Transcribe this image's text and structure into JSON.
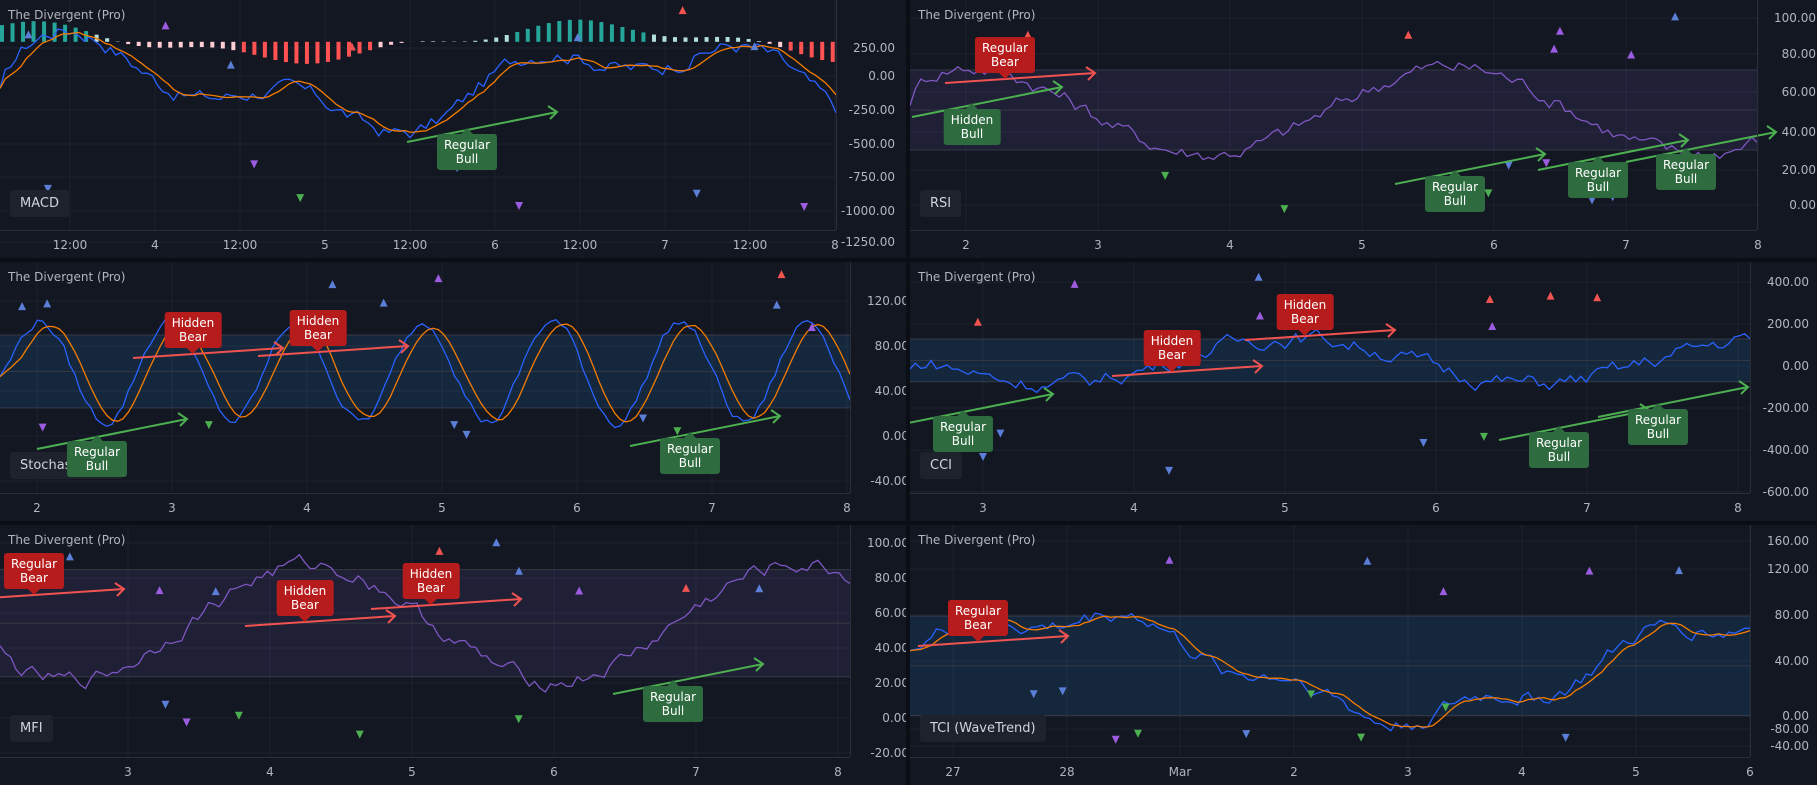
{
  "panels": [
    {
      "title": "The Divergent (Pro)",
      "name": "MACD",
      "y_ticks": [
        "250.00",
        "0.00",
        "-250.00",
        "-500.00",
        "-750.00",
        "-1000.00",
        "-1250.00"
      ],
      "x_ticks": [
        "12:00",
        "4",
        "12:00",
        "5",
        "12:00",
        "6",
        "12:00",
        "7",
        "12:00",
        "8"
      ],
      "labels": [
        {
          "kind": "bull",
          "text": "Regular\nBull"
        }
      ]
    },
    {
      "title": "The Divergent (Pro)",
      "name": "RSI",
      "y_ticks": [
        "100.00",
        "80.00",
        "60.00",
        "40.00",
        "20.00",
        "0.00"
      ],
      "x_ticks": [
        "2",
        "3",
        "4",
        "5",
        "6",
        "7",
        "8"
      ],
      "labels": [
        {
          "kind": "bear",
          "text": "Regular\nBear"
        },
        {
          "kind": "bull",
          "text": "Hidden\nBull"
        },
        {
          "kind": "bull",
          "text": "Regular\nBull"
        },
        {
          "kind": "bull",
          "text": "Regular\nBull"
        },
        {
          "kind": "bull",
          "text": "Regular\nBull"
        }
      ]
    },
    {
      "title": "The Divergent (Pro)",
      "name": "Stochastic RSI",
      "y_ticks": [
        "120.00",
        "80.00",
        "40.00",
        "0.00",
        "-40.00"
      ],
      "x_ticks": [
        "2",
        "3",
        "4",
        "5",
        "6",
        "7",
        "8"
      ],
      "labels": [
        {
          "kind": "bear",
          "text": "Hidden\nBear"
        },
        {
          "kind": "bear",
          "text": "Hidden\nBear"
        },
        {
          "kind": "bull",
          "text": "Regular\nBull"
        },
        {
          "kind": "bull",
          "text": "Regular\nBull"
        }
      ]
    },
    {
      "title": "The Divergent (Pro)",
      "name": "CCI",
      "y_ticks": [
        "400.00",
        "200.00",
        "0.00",
        "-200.00",
        "-400.00",
        "-600.00"
      ],
      "x_ticks": [
        "3",
        "4",
        "5",
        "6",
        "7",
        "8"
      ],
      "labels": [
        {
          "kind": "bear",
          "text": "Hidden\nBear"
        },
        {
          "kind": "bear",
          "text": "Hidden\nBear"
        },
        {
          "kind": "bull",
          "text": "Regular\nBull"
        },
        {
          "kind": "bull",
          "text": "Regular\nBull"
        },
        {
          "kind": "bull",
          "text": "Regular\nBull"
        }
      ]
    },
    {
      "title": "The Divergent (Pro)",
      "name": "MFI",
      "y_ticks": [
        "100.00",
        "80.00",
        "60.00",
        "40.00",
        "20.00",
        "0.00",
        "-20.00"
      ],
      "x_ticks": [
        "3",
        "4",
        "5",
        "6",
        "7",
        "8"
      ],
      "labels": [
        {
          "kind": "bear",
          "text": "Regular\nBear"
        },
        {
          "kind": "bear",
          "text": "Hidden\nBear"
        },
        {
          "kind": "bear",
          "text": "Hidden\nBear"
        },
        {
          "kind": "bull",
          "text": "Regular\nBull"
        }
      ]
    },
    {
      "title": "The Divergent (Pro)",
      "name": "TCI (WaveTrend)",
      "y_ticks": [
        "160.00",
        "120.00",
        "80.00",
        "40.00",
        "0.00",
        "-40.00",
        "-80.00"
      ],
      "x_ticks": [
        "27",
        "28",
        "Mar",
        "2",
        "3",
        "4",
        "5",
        "6"
      ],
      "labels": [
        {
          "kind": "bear",
          "text": "Regular\nBear"
        }
      ]
    }
  ],
  "chart_data": [
    {
      "type": "line",
      "title": "The Divergent (Pro)",
      "indicator": "MACD",
      "ylim": [
        -1350,
        300
      ],
      "series": [
        {
          "color": "#2962ff"
        },
        {
          "color": "#f57c00"
        }
      ]
    },
    {
      "type": "line",
      "title": "The Divergent (Pro)",
      "indicator": "RSI",
      "ylim": [
        -10,
        105
      ],
      "band": [
        30,
        70
      ],
      "series": [
        {
          "color": "#7e57c2"
        }
      ]
    },
    {
      "type": "line",
      "title": "The Divergent (Pro)",
      "indicator": "Stochastic RSI",
      "ylim": [
        -50,
        140
      ],
      "band": [
        20,
        80
      ],
      "series": [
        {
          "color": "#2962ff"
        },
        {
          "color": "#f57c00"
        }
      ]
    },
    {
      "type": "line",
      "title": "The Divergent (Pro)",
      "indicator": "CCI",
      "ylim": [
        -620,
        460
      ],
      "band": [
        -100,
        100
      ],
      "series": [
        {
          "color": "#2962ff"
        }
      ]
    },
    {
      "type": "line",
      "title": "The Divergent (Pro)",
      "indicator": "MFI",
      "ylim": [
        -25,
        105
      ],
      "band": [
        20,
        80
      ],
      "series": [
        {
          "color": "#7e57c2"
        }
      ]
    },
    {
      "type": "line",
      "title": "The Divergent (Pro)",
      "indicator": "TCI (WaveTrend)",
      "ylim": [
        -110,
        170
      ],
      "band": [
        -60,
        60
      ],
      "series": [
        {
          "color": "#2962ff"
        },
        {
          "color": "#f57c00"
        }
      ]
    }
  ],
  "colors": {
    "bg": "#131722",
    "bear": "#b71c1c",
    "bull": "#2e6b3f",
    "bear_line": "#f05350",
    "bull_line": "#4caf50",
    "purple_marker": "#9c5ce0",
    "blue_marker": "#5b7fd6"
  }
}
